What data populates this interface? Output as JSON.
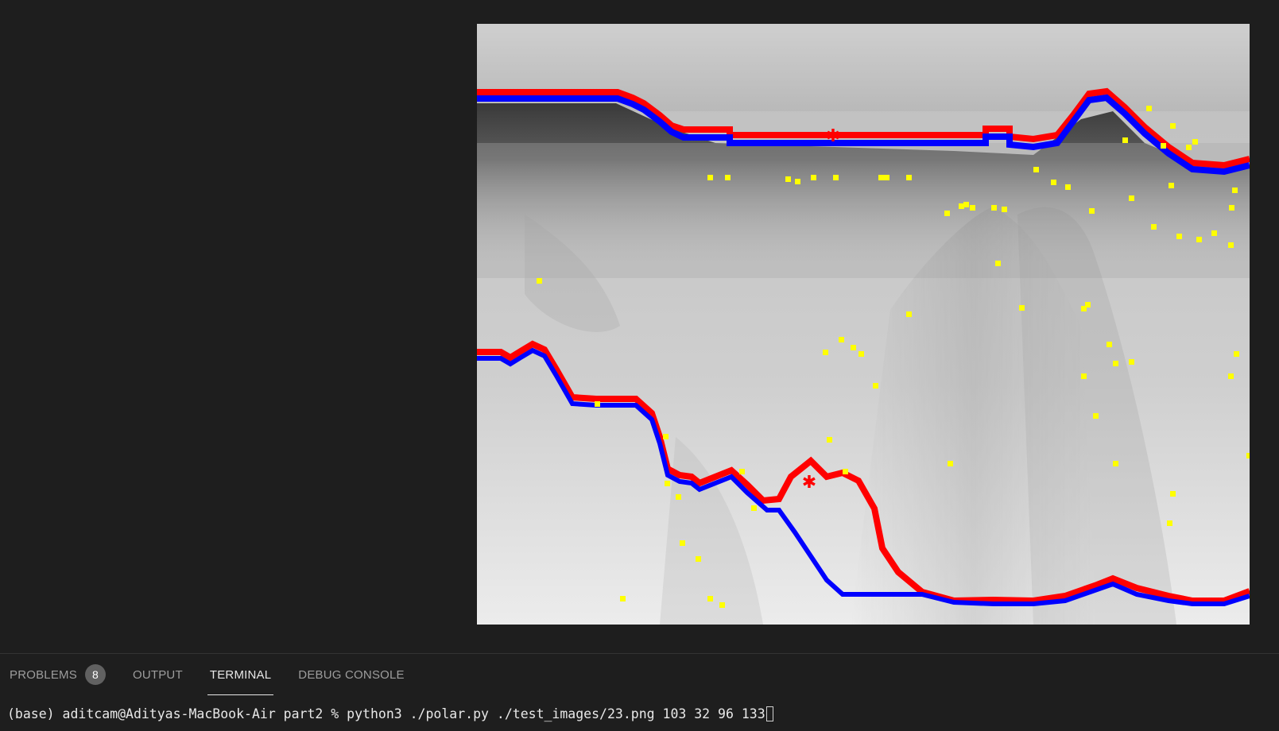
{
  "editor": {
    "image_viewer": {
      "icon": "image-preview",
      "colors": {
        "edge_red": "#ff0000",
        "edge_blue": "#0000ff",
        "marker_yellow": "#ffff00",
        "background_gray": "#d8d8d8",
        "dark_band": "#1a1a1a"
      }
    }
  },
  "panel": {
    "tabs": [
      {
        "label": "PROBLEMS",
        "badge": "8",
        "active": false
      },
      {
        "label": "OUTPUT",
        "active": false
      },
      {
        "label": "TERMINAL",
        "active": true
      },
      {
        "label": "DEBUG CONSOLE",
        "active": false
      }
    ],
    "terminal": {
      "command_line": "(base) aditcam@Adityas-MacBook-Air part2 % python3 ./polar.py ./test_images/23.png 103 32 96 133"
    }
  }
}
